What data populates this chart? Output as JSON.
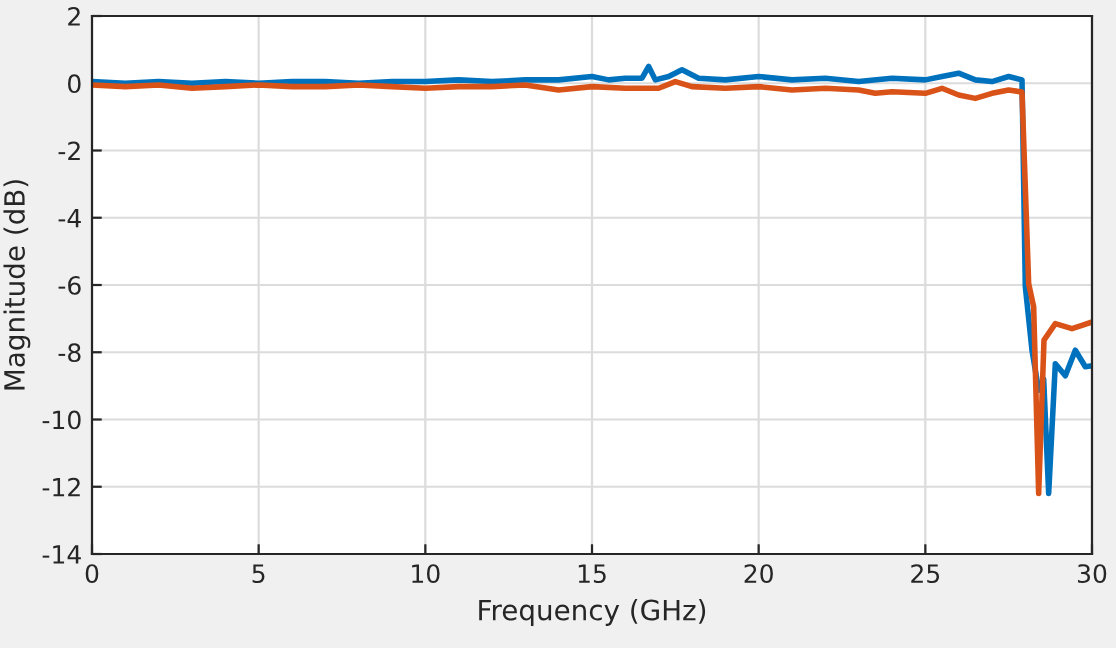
{
  "chart_data": {
    "type": "line",
    "xlabel": "Frequency (GHz)",
    "ylabel": "Magnitude (dB)",
    "xlim": [
      0,
      30
    ],
    "ylim": [
      -14,
      2
    ],
    "xticks": [
      0,
      5,
      10,
      15,
      20,
      25,
      30
    ],
    "yticks": [
      2,
      0,
      -2,
      -4,
      -6,
      -8,
      -10,
      -12,
      -14
    ],
    "grid": true,
    "legend": false,
    "marker": "none",
    "line_style": "solid",
    "series": [
      {
        "color": "#0072bd",
        "x": [
          0,
          1,
          2,
          3,
          4,
          5,
          6,
          7,
          8,
          9,
          10,
          11,
          12,
          13,
          14,
          15,
          15.5,
          16,
          16.5,
          16.7,
          16.9,
          17.3,
          17.7,
          18.2,
          19,
          20,
          21,
          22,
          23,
          24,
          25,
          25.5,
          26,
          26.5,
          27,
          27.5,
          27.9,
          28.0,
          28.2,
          28.4,
          28.55,
          28.7,
          28.9,
          29.2,
          29.5,
          29.8,
          30
        ],
        "values": [
          0.05,
          0.0,
          0.05,
          0.0,
          0.05,
          0.0,
          0.05,
          0.05,
          0.0,
          0.05,
          0.05,
          0.1,
          0.05,
          0.1,
          0.1,
          0.2,
          0.1,
          0.15,
          0.15,
          0.5,
          0.1,
          0.2,
          0.4,
          0.15,
          0.1,
          0.2,
          0.1,
          0.15,
          0.05,
          0.15,
          0.1,
          0.2,
          0.3,
          0.1,
          0.05,
          0.2,
          0.1,
          -6.05,
          -7.94,
          -9.13,
          -8.8,
          -12.2,
          -8.34,
          -8.7,
          -7.94,
          -8.43,
          -8.4
        ]
      },
      {
        "color": "#d95319",
        "x": [
          0,
          1,
          2,
          3,
          4,
          5,
          6,
          7,
          8,
          9,
          10,
          11,
          12,
          13,
          14,
          15,
          16,
          17,
          17.5,
          18,
          19,
          20,
          21,
          22,
          23,
          23.5,
          24,
          25,
          25.5,
          26,
          26.5,
          27,
          27.5,
          27.9,
          28.1,
          28.25,
          28.4,
          28.56,
          28.9,
          29.4,
          29.7,
          30
        ],
        "values": [
          -0.05,
          -0.1,
          -0.05,
          -0.15,
          -0.1,
          -0.05,
          -0.1,
          -0.1,
          -0.05,
          -0.1,
          -0.15,
          -0.1,
          -0.1,
          -0.05,
          -0.2,
          -0.1,
          -0.15,
          -0.15,
          0.05,
          -0.1,
          -0.15,
          -0.1,
          -0.2,
          -0.15,
          -0.2,
          -0.3,
          -0.25,
          -0.3,
          -0.15,
          -0.35,
          -0.45,
          -0.3,
          -0.2,
          -0.26,
          -5.96,
          -6.65,
          -12.2,
          -7.64,
          -7.15,
          -7.3,
          -7.2,
          -7.1
        ]
      }
    ]
  }
}
